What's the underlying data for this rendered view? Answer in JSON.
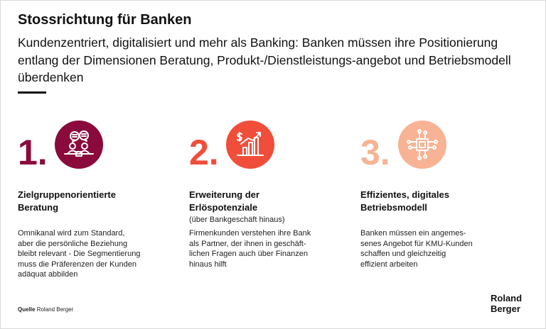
{
  "header": {
    "title": "Stossrichtung für Banken",
    "subtitle": "Kundenzentriert, digitalisiert und mehr als Banking: Banken müssen ihre Positionierung entlang der Dimensionen Beratung, Produkt-/Dienstleistungs-angebot und Betriebsmodell überdenken"
  },
  "items": [
    {
      "number": "1.",
      "color": "#8a0a3c",
      "icon": "consultation-icon",
      "heading_line1": "Zielgruppenorientierte",
      "heading_line2": "Beratung",
      "subheading": "",
      "body": [
        "Omnikanal wird zum Standard,",
        "aber die persönliche Beziehung",
        "bleibt relevant - Die Segmentierung",
        "muss die Präferenzen der Kunden",
        "adäquat abbilden"
      ]
    },
    {
      "number": "2.",
      "color": "#f04e3a",
      "icon": "revenue-growth-icon",
      "heading_line1": "Erweiterung der",
      "heading_line2": "Erlöspotenziale",
      "subheading": "(über Bankgeschäft hinaus)",
      "body": [
        "Firmenkunden verstehen ihre Bank",
        "als Partner, der ihnen in geschäft-",
        "lichen Fragen auch über Finanzen",
        "hinaus hilft"
      ]
    },
    {
      "number": "3.",
      "color": "#f7b394",
      "icon": "chip-network-icon",
      "heading_line1": "Effizientes, digitales",
      "heading_line2": "Betriebsmodell",
      "subheading": "",
      "body": [
        "Banken müssen ein angemes-",
        "senes Angebot für KMU-Kunden",
        "schaffen und gleichzeitig",
        "effizient arbeiten"
      ]
    }
  ],
  "footer": {
    "source_label": "Quelle",
    "source_text": "Roland Berger",
    "logo_line1": "Roland",
    "logo_line2": "Berger"
  }
}
